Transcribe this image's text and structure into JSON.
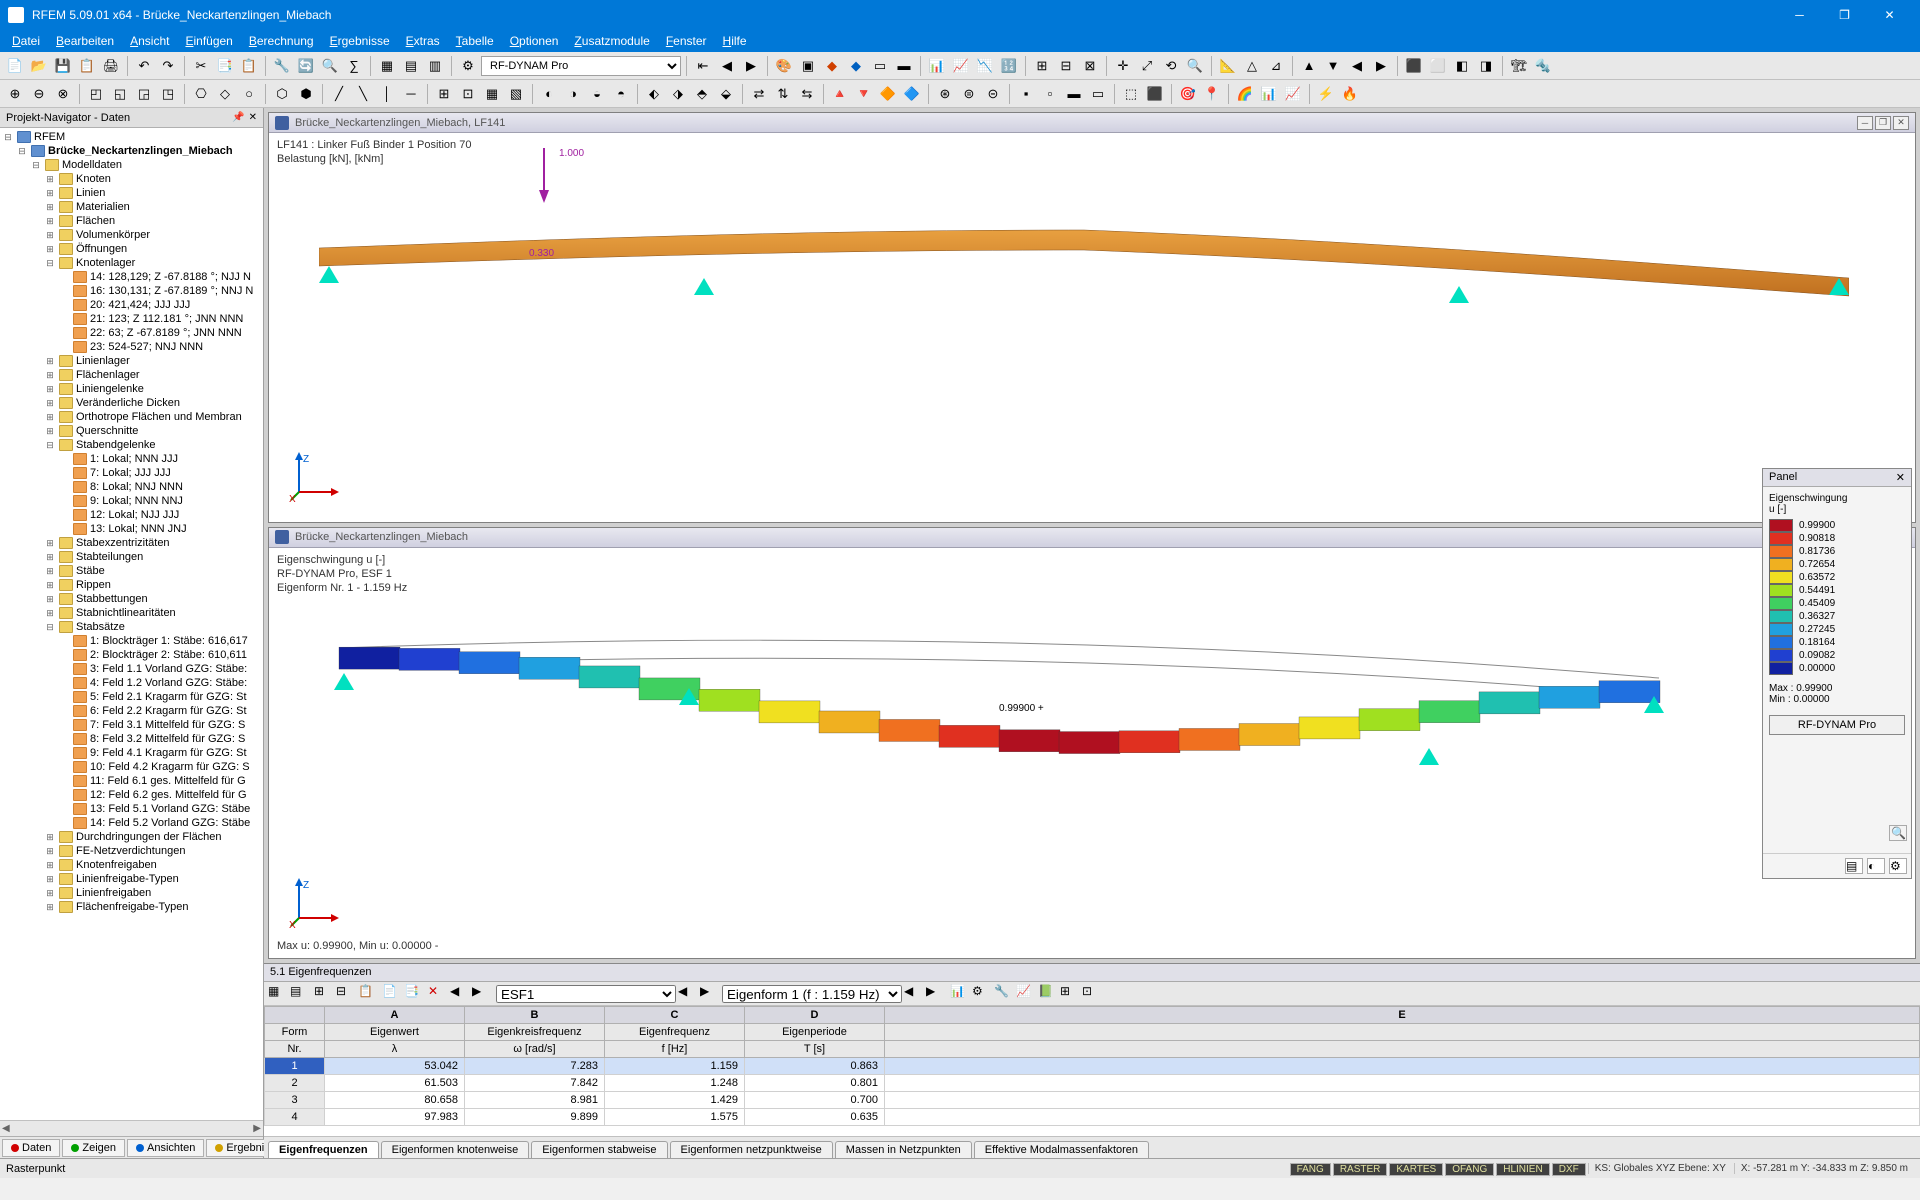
{
  "title": "RFEM 5.09.01 x64 - Brücke_Neckartenzlingen_Miebach",
  "menu": [
    "Datei",
    "Bearbeiten",
    "Ansicht",
    "Einfügen",
    "Berechnung",
    "Ergebnisse",
    "Extras",
    "Tabelle",
    "Optionen",
    "Zusatzmodule",
    "Fenster",
    "Hilfe"
  ],
  "toolbar1_combo": "RF-DYNAM Pro",
  "navigator": {
    "title": "Projekt-Navigator - Daten",
    "root": "RFEM",
    "project": "Brücke_Neckartenzlingen_Miebach",
    "modelldaten": "Modelldaten",
    "items_top": [
      "Knoten",
      "Linien",
      "Materialien",
      "Flächen",
      "Volumenkörper",
      "Öffnungen"
    ],
    "knotenlager": "Knotenlager",
    "knotenlager_items": [
      "14: 128,129; Z -67.8188 °; NJJ N",
      "16: 130,131; Z -67.8189 °; NNJ N",
      "20: 421,424; JJJ JJJ",
      "21: 123; Z 112.181 °; JNN NNN",
      "22: 63; Z -67.8189 °; JNN NNN",
      "23: 524-527; NNJ NNN"
    ],
    "items_mid": [
      "Linienlager",
      "Flächenlager",
      "Liniengelenke",
      "Veränderliche Dicken",
      "Orthotrope Flächen und Membran",
      "Querschnitte"
    ],
    "stabendgelenke": "Stabendgelenke",
    "stabendgelenke_items": [
      "1: Lokal; NNN JJJ",
      "7: Lokal; JJJ JJJ",
      "8: Lokal; NNJ NNN",
      "9: Lokal; NNN NNJ",
      "12: Lokal; NJJ JJJ",
      "13: Lokal; NNN JNJ"
    ],
    "items_mid2": [
      "Stabexzentrizitäten",
      "Stabteilungen",
      "Stäbe",
      "Rippen",
      "Stabbettungen",
      "Stabnichtlinearitäten"
    ],
    "stabsaetze": "Stabsätze",
    "stabsaetze_items": [
      "1: Blockträger 1: Stäbe: 616,617",
      "2: Blockträger 2: Stäbe: 610,611",
      "3: Feld 1.1 Vorland GZG: Stäbe:",
      "4: Feld 1.2 Vorland GZG: Stäbe:",
      "5: Feld 2.1 Kragarm für GZG: St",
      "6: Feld 2.2 Kragarm für GZG: St",
      "7: Feld 3.1 Mittelfeld für GZG: S",
      "8: Feld 3.2 Mittelfeld für GZG: S",
      "9: Feld 4.1 Kragarm für GZG: St",
      "10: Feld 4.2 Kragarm für GZG: S",
      "11: Feld 6.1 ges. Mittelfeld für G",
      "12: Feld 6.2 ges. Mittelfeld für G",
      "13: Feld 5.1 Vorland GZG: Stäbe",
      "14: Feld 5.2 Vorland GZG: Stäbe"
    ],
    "items_bot": [
      "Durchdringungen der Flächen",
      "FE-Netzverdichtungen",
      "Knotenfreigaben",
      "Linienfreigabe-Typen",
      "Linienfreigaben",
      "Flächenfreigabe-Typen"
    ]
  },
  "bottom_tabs": [
    "Daten",
    "Zeigen",
    "Ansichten",
    "Ergebnis..."
  ],
  "viewport1": {
    "title": "Brücke_Neckartenzlingen_Miebach, LF141",
    "line1": "LF141 : Linker Fuß Binder 1 Position 70",
    "line2": "Belastung [kN], [kNm]",
    "load_label": "1.000",
    "dim_label": "0.330",
    "beam_color_top": "#e8a040",
    "beam_color_bot": "#c07020"
  },
  "viewport2": {
    "title": "Brücke_Neckartenzlingen_Miebach",
    "line1": "Eigenschwingung u [-]",
    "line2": "RF-DYNAM Pro, ESF 1",
    "line3": "Eigenform Nr. 1 - 1.159 Hz",
    "peak_label": "0.99900 +",
    "footer": "Max u: 0.99900, Min u: 0.00000 -"
  },
  "legend": {
    "title": "Panel",
    "subtitle": "Eigenschwingung",
    "unit": "u [-]",
    "rows": [
      {
        "c": "#b01020",
        "v": "0.99900"
      },
      {
        "c": "#e03020",
        "v": "0.90818"
      },
      {
        "c": "#f07020",
        "v": "0.81736"
      },
      {
        "c": "#f0b020",
        "v": "0.72654"
      },
      {
        "c": "#f0e020",
        "v": "0.63572"
      },
      {
        "c": "#a0e020",
        "v": "0.54491"
      },
      {
        "c": "#40d060",
        "v": "0.45409"
      },
      {
        "c": "#20c0b0",
        "v": "0.36327"
      },
      {
        "c": "#20a0e0",
        "v": "0.27245"
      },
      {
        "c": "#2070e0",
        "v": "0.18164"
      },
      {
        "c": "#2040d0",
        "v": "0.09082"
      },
      {
        "c": "#1020a0",
        "v": "0.00000"
      }
    ],
    "max_label": "Max  :",
    "max_val": "0.99900",
    "min_label": "Min   :",
    "min_val": "0.00000",
    "button": "RF-DYNAM Pro"
  },
  "table": {
    "header": "5.1 Eigenfrequenzen",
    "combo1": "ESF1",
    "combo2": "Eigenform 1 (f : 1.159 Hz)",
    "col_letters": [
      "",
      "A",
      "B",
      "C",
      "D",
      "E"
    ],
    "headers_r1": [
      "Form",
      "Eigenwert",
      "Eigenkreisfrequenz",
      "Eigenfrequenz",
      "Eigenperiode",
      ""
    ],
    "headers_r2": [
      "Nr.",
      "λ",
      "ω [rad/s]",
      "f [Hz]",
      "T [s]",
      ""
    ],
    "rows": [
      [
        "1",
        "53.042",
        "7.283",
        "1.159",
        "0.863"
      ],
      [
        "2",
        "61.503",
        "7.842",
        "1.248",
        "0.801"
      ],
      [
        "3",
        "80.658",
        "8.981",
        "1.429",
        "0.700"
      ],
      [
        "4",
        "97.983",
        "9.899",
        "1.575",
        "0.635"
      ]
    ],
    "tabs": [
      "Eigenfrequenzen",
      "Eigenformen knotenweise",
      "Eigenformen stabweise",
      "Eigenformen netzpunktweise",
      "Massen in Netzpunkten",
      "Effektive Modalmassenfaktoren"
    ]
  },
  "statusbar": {
    "left": "Rasterpunkt",
    "toggles": [
      "FANG",
      "RASTER",
      "KARTES",
      "OFANG",
      "HLINIEN",
      "DXF"
    ],
    "ks": "KS: Globales XYZ  Ebene: XY",
    "coords": "X: -57.281 m   Y: -34.833 m   Z:  9.850 m"
  },
  "mode_shape": {
    "colors": [
      "#1020a0",
      "#2040d0",
      "#2070e0",
      "#20a0e0",
      "#20c0b0",
      "#40d060",
      "#a0e020",
      "#f0e020",
      "#f0b020",
      "#f07020",
      "#e03020",
      "#b01020",
      "#b01020",
      "#e03020",
      "#f07020",
      "#f0b020",
      "#f0e020",
      "#a0e020",
      "#40d060",
      "#20c0b0",
      "#20a0e0",
      "#2070e0"
    ],
    "y_offsets": [
      0,
      3,
      8,
      15,
      25,
      38,
      50,
      62,
      72,
      80,
      85,
      88,
      88,
      85,
      80,
      72,
      62,
      50,
      38,
      25,
      15,
      5
    ]
  }
}
